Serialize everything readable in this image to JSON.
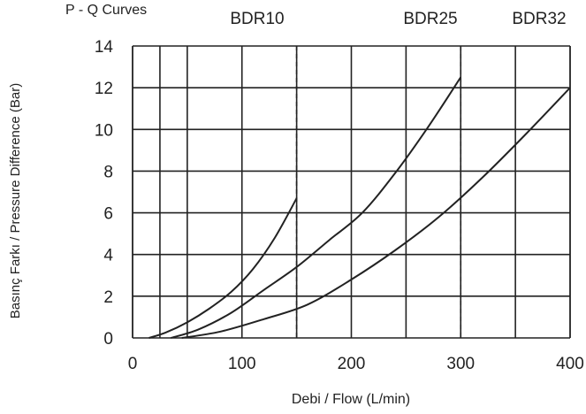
{
  "chart_data": {
    "type": "line",
    "title": "P - Q Curves",
    "xlabel": "Debi / Flow (L/min)",
    "ylabel": "Basınç Farkı /  Pressure Difference (Bar)",
    "xlim": [
      0,
      400
    ],
    "ylim": [
      0,
      14
    ],
    "x_ticks": [
      0,
      100,
      200,
      300,
      400
    ],
    "y_ticks": [
      0,
      2,
      4,
      6,
      8,
      10,
      12,
      14
    ],
    "x_tick_labels": [
      "0",
      "100",
      "200",
      "300",
      "400"
    ],
    "y_tick_labels": [
      "0",
      "2",
      "4",
      "6",
      "8",
      "10",
      "12",
      "14"
    ],
    "grid": true,
    "vertical_gridlines": [
      0,
      25,
      50,
      100,
      150,
      200,
      250,
      300,
      350,
      400
    ],
    "dashed_limits": [
      150,
      300
    ],
    "series": [
      {
        "name": "BDR10",
        "x": [
          15,
          30,
          50,
          70,
          90,
          110,
          130,
          150
        ],
        "y": [
          0,
          0.25,
          0.75,
          1.4,
          2.2,
          3.3,
          4.8,
          6.7
        ]
      },
      {
        "name": "BDR25",
        "x": [
          35,
          60,
          90,
          120,
          150,
          180,
          210,
          240,
          270,
          300
        ],
        "y": [
          0,
          0.4,
          1.2,
          2.3,
          3.4,
          4.7,
          6.0,
          7.9,
          10.1,
          12.5
        ]
      },
      {
        "name": "BDR32",
        "x": [
          45,
          80,
          120,
          160,
          200,
          240,
          280,
          320,
          360,
          400
        ],
        "y": [
          0,
          0.3,
          0.9,
          1.6,
          2.8,
          4.2,
          5.8,
          7.7,
          9.8,
          12.0
        ]
      }
    ],
    "colors": {
      "axis": "#222222",
      "series": "#222222",
      "grid": "#222222"
    }
  }
}
